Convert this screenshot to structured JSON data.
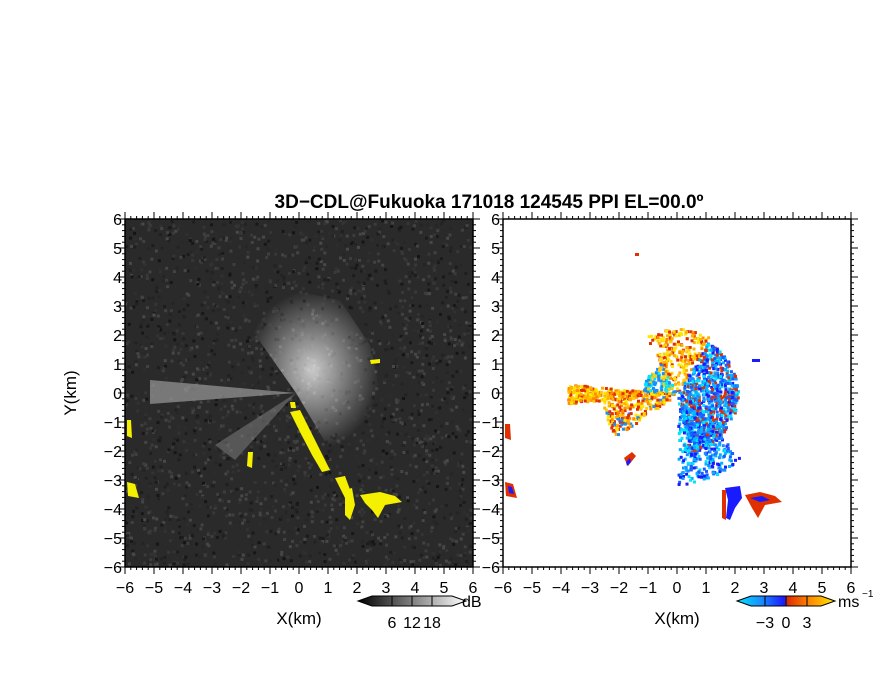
{
  "chart_data": {
    "title": "3D−CDL@Fukuoka 171018 124545 PPI EL=00.0º",
    "panels": [
      {
        "name": "reflectivity",
        "type": "heatmap",
        "xlabel": "X(km)",
        "ylabel": "Y(km)",
        "xlim": [
          -6,
          6
        ],
        "ylim": [
          -6,
          6
        ],
        "x_ticks": [
          "−6",
          "−5",
          "−4",
          "−3",
          "−2",
          "−1",
          "0",
          "1",
          "2",
          "3",
          "4",
          "5",
          "6"
        ],
        "y_ticks": [
          "6",
          "5",
          "4",
          "3",
          "2",
          "1",
          "0",
          "−1",
          "−2",
          "−3",
          "−4",
          "−5",
          "−6"
        ],
        "background": "#2a2a2a",
        "highlight_color": "#f4f000",
        "colorbar": {
          "unit": "dB",
          "ticks": [
            "6",
            "12",
            "18"
          ],
          "tick_values": [
            6,
            12,
            18
          ],
          "range": [
            0,
            24
          ]
        }
      },
      {
        "name": "doppler-velocity",
        "type": "heatmap",
        "xlabel": "X(km)",
        "xlim": [
          -6,
          6
        ],
        "ylim": [
          -6,
          6
        ],
        "x_ticks": [
          "−6",
          "−5",
          "−4",
          "−3",
          "−2",
          "−1",
          "0",
          "1",
          "2",
          "3",
          "4",
          "5",
          "6"
        ],
        "y_ticks": [
          "6",
          "5",
          "4",
          "3",
          "2",
          "1",
          "0",
          "−1",
          "−2",
          "−3",
          "−4",
          "−5",
          "−6"
        ],
        "background": "#ffffff",
        "colorbar": {
          "unit": "ms",
          "unit_exp": "−1",
          "ticks": [
            "−3",
            "0",
            "3"
          ],
          "tick_values": [
            -3,
            0,
            3
          ],
          "range": [
            -5,
            5
          ]
        }
      }
    ]
  }
}
